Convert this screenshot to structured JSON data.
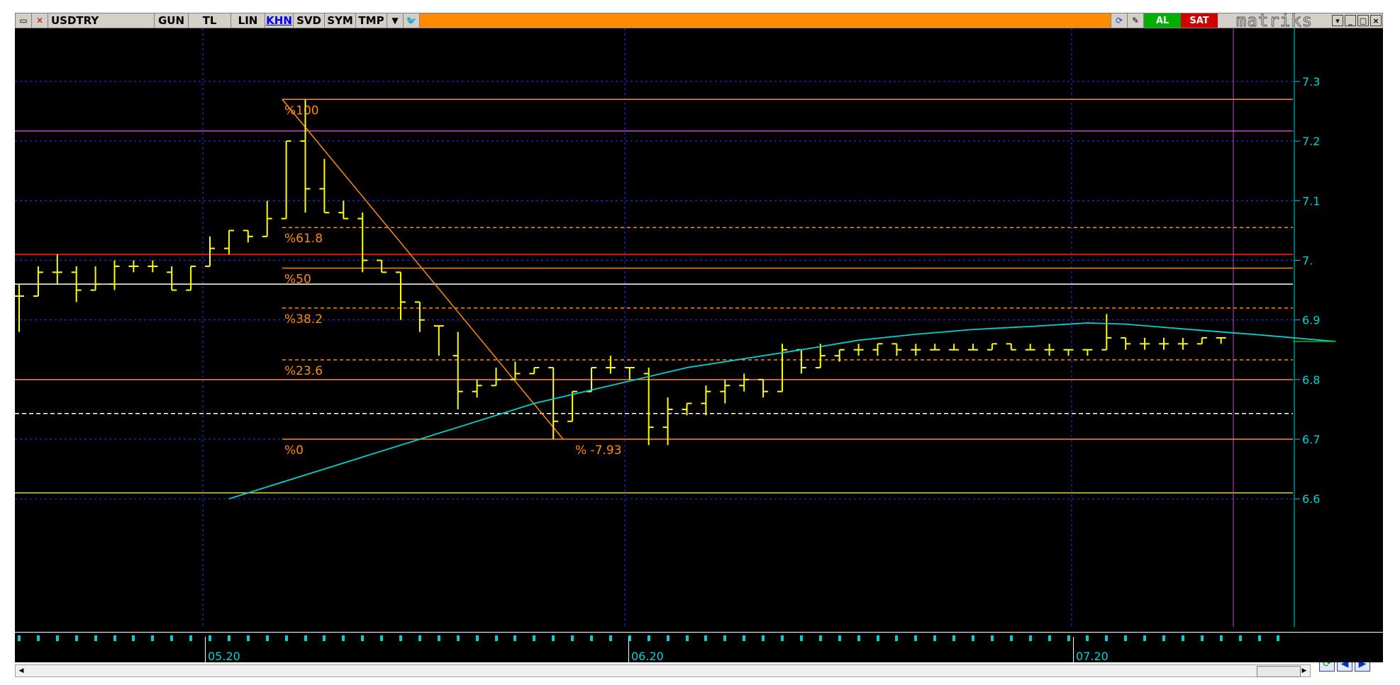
{
  "toolbar": {
    "symbol": "USDTRY",
    "buttons": [
      "GUN",
      "TL",
      "LIN",
      "KHN",
      "SVD",
      "SYM",
      "TMP"
    ],
    "active_button": "KHN",
    "al_label": "AL",
    "sat_label": "SAT",
    "brand": "matriks",
    "icons": [
      "chart-type-icon",
      "dropdown-icon",
      "twitter-icon",
      "refresh-data-icon",
      "pencil-icon",
      "minimize-icon",
      "maximize-icon",
      "close-icon"
    ]
  },
  "colors": {
    "chart_bg": "#000000",
    "grid": "#1a3cff",
    "axis": "#00d0d0",
    "bars": "#ffff00",
    "fib": "#ff8c00",
    "ma": "#00d0d0",
    "magenta": "#cc44cc",
    "red_line": "#ff2020",
    "white_line": "#ffffff",
    "yellow_line": "#d8d800"
  },
  "chart_data": {
    "type": "line",
    "title": "",
    "ylim": [
      6.6,
      7.33
    ],
    "y_ticks": [
      "7.3",
      "7.2",
      "7.1",
      "7.",
      "6.9",
      "6.8",
      "6.7",
      "6.6"
    ],
    "y_tick_values": [
      7.3,
      7.2,
      7.1,
      7.0,
      6.9,
      6.8,
      6.7,
      6.6
    ],
    "x_ticks": [
      "05.20",
      "06.20",
      "07.20"
    ],
    "grid": true,
    "fibonacci": {
      "levels": [
        {
          "label": "%100",
          "value": 7.27
        },
        {
          "label": "%61.8",
          "value": 7.055
        },
        {
          "label": "%50",
          "value": 6.987
        },
        {
          "label": "%38.2",
          "value": 6.92
        },
        {
          "label": "%23.6",
          "value": 6.833
        },
        {
          "label": "%0",
          "value": 6.7
        }
      ],
      "change_label": "% -7.93"
    },
    "horizontal_lines": [
      {
        "value": 7.217,
        "color": "magenta"
      },
      {
        "value": 7.01,
        "color": "red"
      },
      {
        "value": 6.96,
        "color": "white"
      },
      {
        "value": 6.8,
        "color": "orange"
      },
      {
        "value": 6.743,
        "color": "white-dashed"
      },
      {
        "value": 6.61,
        "color": "yellow"
      }
    ],
    "ohlc": [
      [
        6.94,
        6.96,
        6.88,
        6.94
      ],
      [
        6.94,
        6.99,
        6.94,
        6.98
      ],
      [
        6.98,
        7.01,
        6.96,
        6.98
      ],
      [
        6.98,
        6.99,
        6.93,
        6.95
      ],
      [
        6.95,
        6.99,
        6.95,
        6.96
      ],
      [
        6.96,
        7.0,
        6.95,
        6.99
      ],
      [
        6.99,
        7.0,
        6.98,
        6.99
      ],
      [
        6.99,
        7.0,
        6.98,
        6.99
      ],
      [
        6.98,
        6.99,
        6.95,
        6.95
      ],
      [
        6.95,
        6.99,
        6.95,
        6.99
      ],
      [
        6.99,
        7.04,
        6.99,
        7.02
      ],
      [
        7.02,
        7.05,
        7.01,
        7.05
      ],
      [
        7.05,
        7.05,
        7.03,
        7.04
      ],
      [
        7.04,
        7.1,
        7.04,
        7.07
      ],
      [
        7.07,
        7.2,
        7.07,
        7.2
      ],
      [
        7.2,
        7.27,
        7.08,
        7.12
      ],
      [
        7.12,
        7.17,
        7.08,
        7.08
      ],
      [
        7.08,
        7.1,
        7.07,
        7.07
      ],
      [
        7.07,
        7.08,
        6.98,
        7.0
      ],
      [
        7.0,
        7.0,
        6.98,
        6.98
      ],
      [
        6.98,
        6.98,
        6.9,
        6.93
      ],
      [
        6.93,
        6.93,
        6.88,
        6.9
      ],
      [
        6.89,
        6.89,
        6.84,
        6.89
      ],
      [
        6.84,
        6.88,
        6.75,
        6.78
      ],
      [
        6.78,
        6.8,
        6.77,
        6.79
      ],
      [
        6.79,
        6.82,
        6.79,
        6.8
      ],
      [
        6.8,
        6.83,
        6.8,
        6.81
      ],
      [
        6.81,
        6.82,
        6.81,
        6.82
      ],
      [
        6.82,
        6.82,
        6.7,
        6.73
      ],
      [
        6.73,
        6.78,
        6.73,
        6.78
      ],
      [
        6.78,
        6.82,
        6.78,
        6.82
      ],
      [
        6.82,
        6.84,
        6.81,
        6.82
      ],
      [
        6.82,
        6.82,
        6.8,
        6.82
      ],
      [
        6.81,
        6.82,
        6.69,
        6.72
      ],
      [
        6.72,
        6.77,
        6.69,
        6.75
      ],
      [
        6.75,
        6.76,
        6.74,
        6.76
      ],
      [
        6.76,
        6.79,
        6.74,
        6.78
      ],
      [
        6.78,
        6.8,
        6.76,
        6.79
      ],
      [
        6.79,
        6.81,
        6.78,
        6.8
      ],
      [
        6.8,
        6.8,
        6.77,
        6.78
      ],
      [
        6.78,
        6.86,
        6.78,
        6.85
      ],
      [
        6.85,
        6.85,
        6.81,
        6.82
      ],
      [
        6.82,
        6.86,
        6.82,
        6.84
      ],
      [
        6.84,
        6.85,
        6.83,
        6.85
      ],
      [
        6.85,
        6.86,
        6.84,
        6.85
      ],
      [
        6.85,
        6.86,
        6.84,
        6.86
      ],
      [
        6.86,
        6.86,
        6.84,
        6.85
      ],
      [
        6.85,
        6.86,
        6.84,
        6.85
      ],
      [
        6.85,
        6.86,
        6.85,
        6.85
      ],
      [
        6.85,
        6.86,
        6.85,
        6.85
      ],
      [
        6.85,
        6.86,
        6.85,
        6.85
      ],
      [
        6.85,
        6.86,
        6.85,
        6.86
      ],
      [
        6.86,
        6.86,
        6.85,
        6.85
      ],
      [
        6.85,
        6.86,
        6.85,
        6.85
      ],
      [
        6.85,
        6.86,
        6.84,
        6.85
      ],
      [
        6.85,
        6.85,
        6.84,
        6.85
      ],
      [
        6.85,
        6.85,
        6.84,
        6.85
      ],
      [
        6.85,
        6.91,
        6.85,
        6.87
      ],
      [
        6.87,
        6.87,
        6.85,
        6.86
      ],
      [
        6.86,
        6.87,
        6.85,
        6.86
      ],
      [
        6.86,
        6.87,
        6.85,
        6.86
      ],
      [
        6.86,
        6.87,
        6.85,
        6.86
      ],
      [
        6.86,
        6.87,
        6.86,
        6.87
      ],
      [
        6.87,
        6.87,
        6.86,
        6.87
      ]
    ],
    "moving_average": [
      [
        11,
        6.6
      ],
      [
        15,
        6.64
      ],
      [
        19,
        6.68
      ],
      [
        23,
        6.72
      ],
      [
        27,
        6.76
      ],
      [
        31,
        6.79
      ],
      [
        35,
        6.82
      ],
      [
        38,
        6.835
      ],
      [
        41,
        6.85
      ],
      [
        44,
        6.866
      ],
      [
        47,
        6.876
      ],
      [
        50,
        6.884
      ],
      [
        53,
        6.889
      ],
      [
        56,
        6.895
      ],
      [
        58,
        6.893
      ],
      [
        61,
        6.885
      ],
      [
        65,
        6.875
      ],
      [
        69,
        6.864
      ]
    ]
  }
}
